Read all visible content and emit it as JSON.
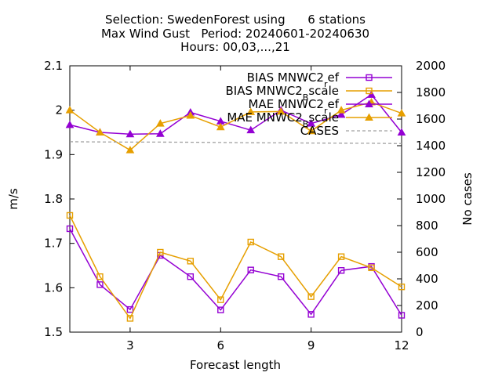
{
  "chart_data": {
    "type": "line",
    "title_lines": [
      "Selection: SwedenForest using      6 stations",
      "Max Wind Gust   Period: 20240601-20240630",
      "Hours: 00,03,...,21"
    ],
    "xlabel": "Forecast length",
    "ylabel": "m/s",
    "y2label": "No cases",
    "xlim": [
      1,
      12
    ],
    "ylim": [
      1.5,
      2.1
    ],
    "y2lim": [
      0,
      2000
    ],
    "x_ticks": [
      3,
      6,
      9,
      12
    ],
    "y_ticks": [
      "1.5",
      "1.6",
      "1.7",
      "1.8",
      "1.9",
      "2",
      "2.1"
    ],
    "y2_ticks": [
      "0",
      "200",
      "400",
      "600",
      "800",
      "1000",
      "1200",
      "1400",
      "1600",
      "1800",
      "2000"
    ],
    "grid": false,
    "legend_position": "top-right",
    "x": [
      1,
      2,
      3,
      4,
      5,
      6,
      7,
      8,
      9,
      10,
      11,
      12
    ],
    "series": [
      {
        "name": "BIAS MNWC2_ref",
        "legend_main": "BIAS MNWC2",
        "legend_sub": "r",
        "legend_tail": "ef",
        "axis": "y1",
        "marker": "square",
        "color": "#9400d3",
        "values": [
          1.733,
          1.607,
          1.551,
          1.673,
          1.625,
          1.55,
          1.64,
          1.625,
          1.54,
          1.639,
          1.648,
          1.538
        ]
      },
      {
        "name": "BIAS MNWC2_Bscale",
        "legend_main": "BIAS MNWC2",
        "legend_sub": "B",
        "legend_tail": "scale",
        "axis": "y1",
        "marker": "square",
        "color": "#e69f00",
        "values": [
          1.763,
          1.625,
          1.531,
          1.68,
          1.66,
          1.573,
          1.703,
          1.67,
          1.58,
          1.67,
          1.645,
          1.602
        ]
      },
      {
        "name": "MAE MNWC2_ref",
        "legend_main": "MAE MNWC2",
        "legend_sub": "r",
        "legend_tail": "ef",
        "axis": "y1",
        "marker": "triangle",
        "color": "#9400d3",
        "values": [
          1.967,
          1.95,
          1.946,
          1.947,
          1.995,
          1.975,
          1.955,
          2.0,
          1.97,
          1.99,
          2.035,
          1.95
        ]
      },
      {
        "name": "MAE MNWC2_Bscale",
        "legend_main": "MAE MNWC2",
        "legend_sub": "B",
        "legend_tail": "scale",
        "axis": "y1",
        "marker": "triangle",
        "color": "#e69f00",
        "values": [
          2.0,
          1.95,
          1.91,
          1.97,
          1.988,
          1.962,
          1.996,
          1.997,
          1.953,
          2.0,
          2.018,
          1.993
        ]
      },
      {
        "name": "CASES",
        "legend_main": "CASES",
        "legend_sub": "",
        "legend_tail": "",
        "axis": "y2",
        "marker": "none",
        "dashed": true,
        "color": "#a0a0a0",
        "values": [
          1430,
          1428,
          1427,
          1427,
          1426,
          1424,
          1422,
          1421,
          1420,
          1419,
          1418,
          1416
        ]
      }
    ]
  }
}
